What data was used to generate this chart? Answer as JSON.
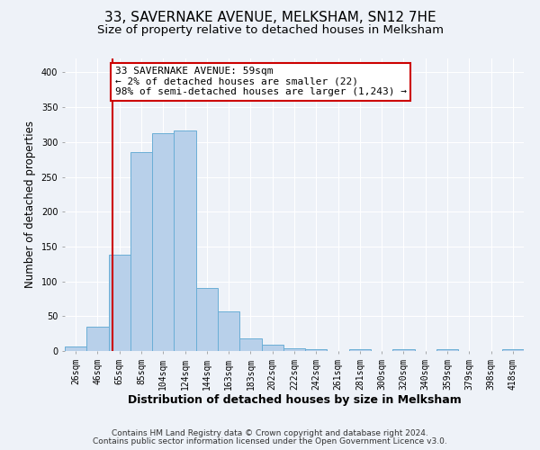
{
  "title": "33, SAVERNAKE AVENUE, MELKSHAM, SN12 7HE",
  "subtitle": "Size of property relative to detached houses in Melksham",
  "xlabel": "Distribution of detached houses by size in Melksham",
  "ylabel": "Number of detached properties",
  "bin_labels": [
    "26sqm",
    "46sqm",
    "65sqm",
    "85sqm",
    "104sqm",
    "124sqm",
    "144sqm",
    "163sqm",
    "183sqm",
    "202sqm",
    "222sqm",
    "242sqm",
    "261sqm",
    "281sqm",
    "300sqm",
    "320sqm",
    "340sqm",
    "359sqm",
    "379sqm",
    "398sqm",
    "418sqm"
  ],
  "bar_heights": [
    6,
    35,
    138,
    285,
    313,
    317,
    90,
    57,
    18,
    9,
    4,
    3,
    0,
    3,
    0,
    3,
    0,
    3,
    0,
    0,
    3
  ],
  "bar_color": "#b8d0ea",
  "bar_edge_color": "#6aaed6",
  "property_line_bin_index": 1.68,
  "annotation_title": "33 SAVERNAKE AVENUE: 59sqm",
  "annotation_line1": "← 2% of detached houses are smaller (22)",
  "annotation_line2": "98% of semi-detached houses are larger (1,243) →",
  "annotation_box_color": "#ffffff",
  "annotation_box_edge_color": "#cc0000",
  "vline_color": "#cc0000",
  "ylim": [
    0,
    420
  ],
  "yticks": [
    0,
    50,
    100,
    150,
    200,
    250,
    300,
    350,
    400
  ],
  "footer_line1": "Contains HM Land Registry data © Crown copyright and database right 2024.",
  "footer_line2": "Contains public sector information licensed under the Open Government Licence v3.0.",
  "background_color": "#eef2f8",
  "grid_color": "#ffffff",
  "title_fontsize": 11,
  "subtitle_fontsize": 9.5,
  "xlabel_fontsize": 9,
  "ylabel_fontsize": 8.5,
  "tick_fontsize": 7,
  "annotation_fontsize": 8,
  "footer_fontsize": 6.5
}
